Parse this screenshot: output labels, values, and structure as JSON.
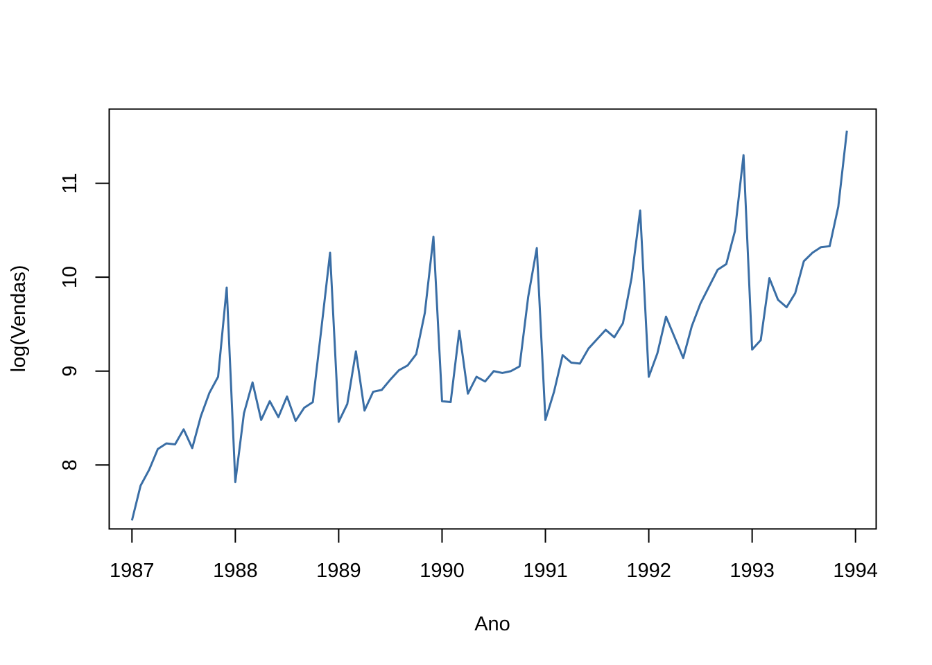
{
  "chart_data": {
    "type": "line",
    "title": "",
    "xlabel": "Ano",
    "ylabel": "log(Vendas)",
    "xlim": [
      1986.78,
      1994.2
    ],
    "ylim": [
      7.32,
      11.79
    ],
    "x_ticks": [
      1987,
      1988,
      1989,
      1990,
      1991,
      1992,
      1993,
      1994
    ],
    "x_tick_labels": [
      "1987",
      "1988",
      "1989",
      "1990",
      "1991",
      "1992",
      "1993",
      "1994"
    ],
    "y_ticks": [
      8,
      9,
      10,
      11
    ],
    "y_tick_labels": [
      "8",
      "9",
      "10",
      "11"
    ],
    "grid": false,
    "legend": "none",
    "line_color": "#3A6EA5",
    "series": [
      {
        "x_start": 1987,
        "frequency": 12,
        "values": [
          7.41,
          7.78,
          7.95,
          8.17,
          8.23,
          8.22,
          8.38,
          8.18,
          8.52,
          8.77,
          8.94,
          9.89,
          7.82,
          8.55,
          8.88,
          8.48,
          8.68,
          8.51,
          8.73,
          8.47,
          8.61,
          8.67,
          9.46,
          10.26,
          8.46,
          8.65,
          9.21,
          8.58,
          8.78,
          8.8,
          8.91,
          9.01,
          9.06,
          9.18,
          9.62,
          10.43,
          8.68,
          8.67,
          9.43,
          8.76,
          8.94,
          8.89,
          9.0,
          8.98,
          9.0,
          9.05,
          9.79,
          10.31,
          8.48,
          8.78,
          9.17,
          9.09,
          9.08,
          9.24,
          9.34,
          9.44,
          9.36,
          9.51,
          9.99,
          10.71,
          8.94,
          9.19,
          9.58,
          9.36,
          9.14,
          9.48,
          9.72,
          9.9,
          10.08,
          10.14,
          10.49,
          11.3,
          9.23,
          9.33,
          9.99,
          9.76,
          9.68,
          9.83,
          10.17,
          10.26,
          10.32,
          10.33,
          10.75,
          11.56
        ]
      }
    ]
  }
}
